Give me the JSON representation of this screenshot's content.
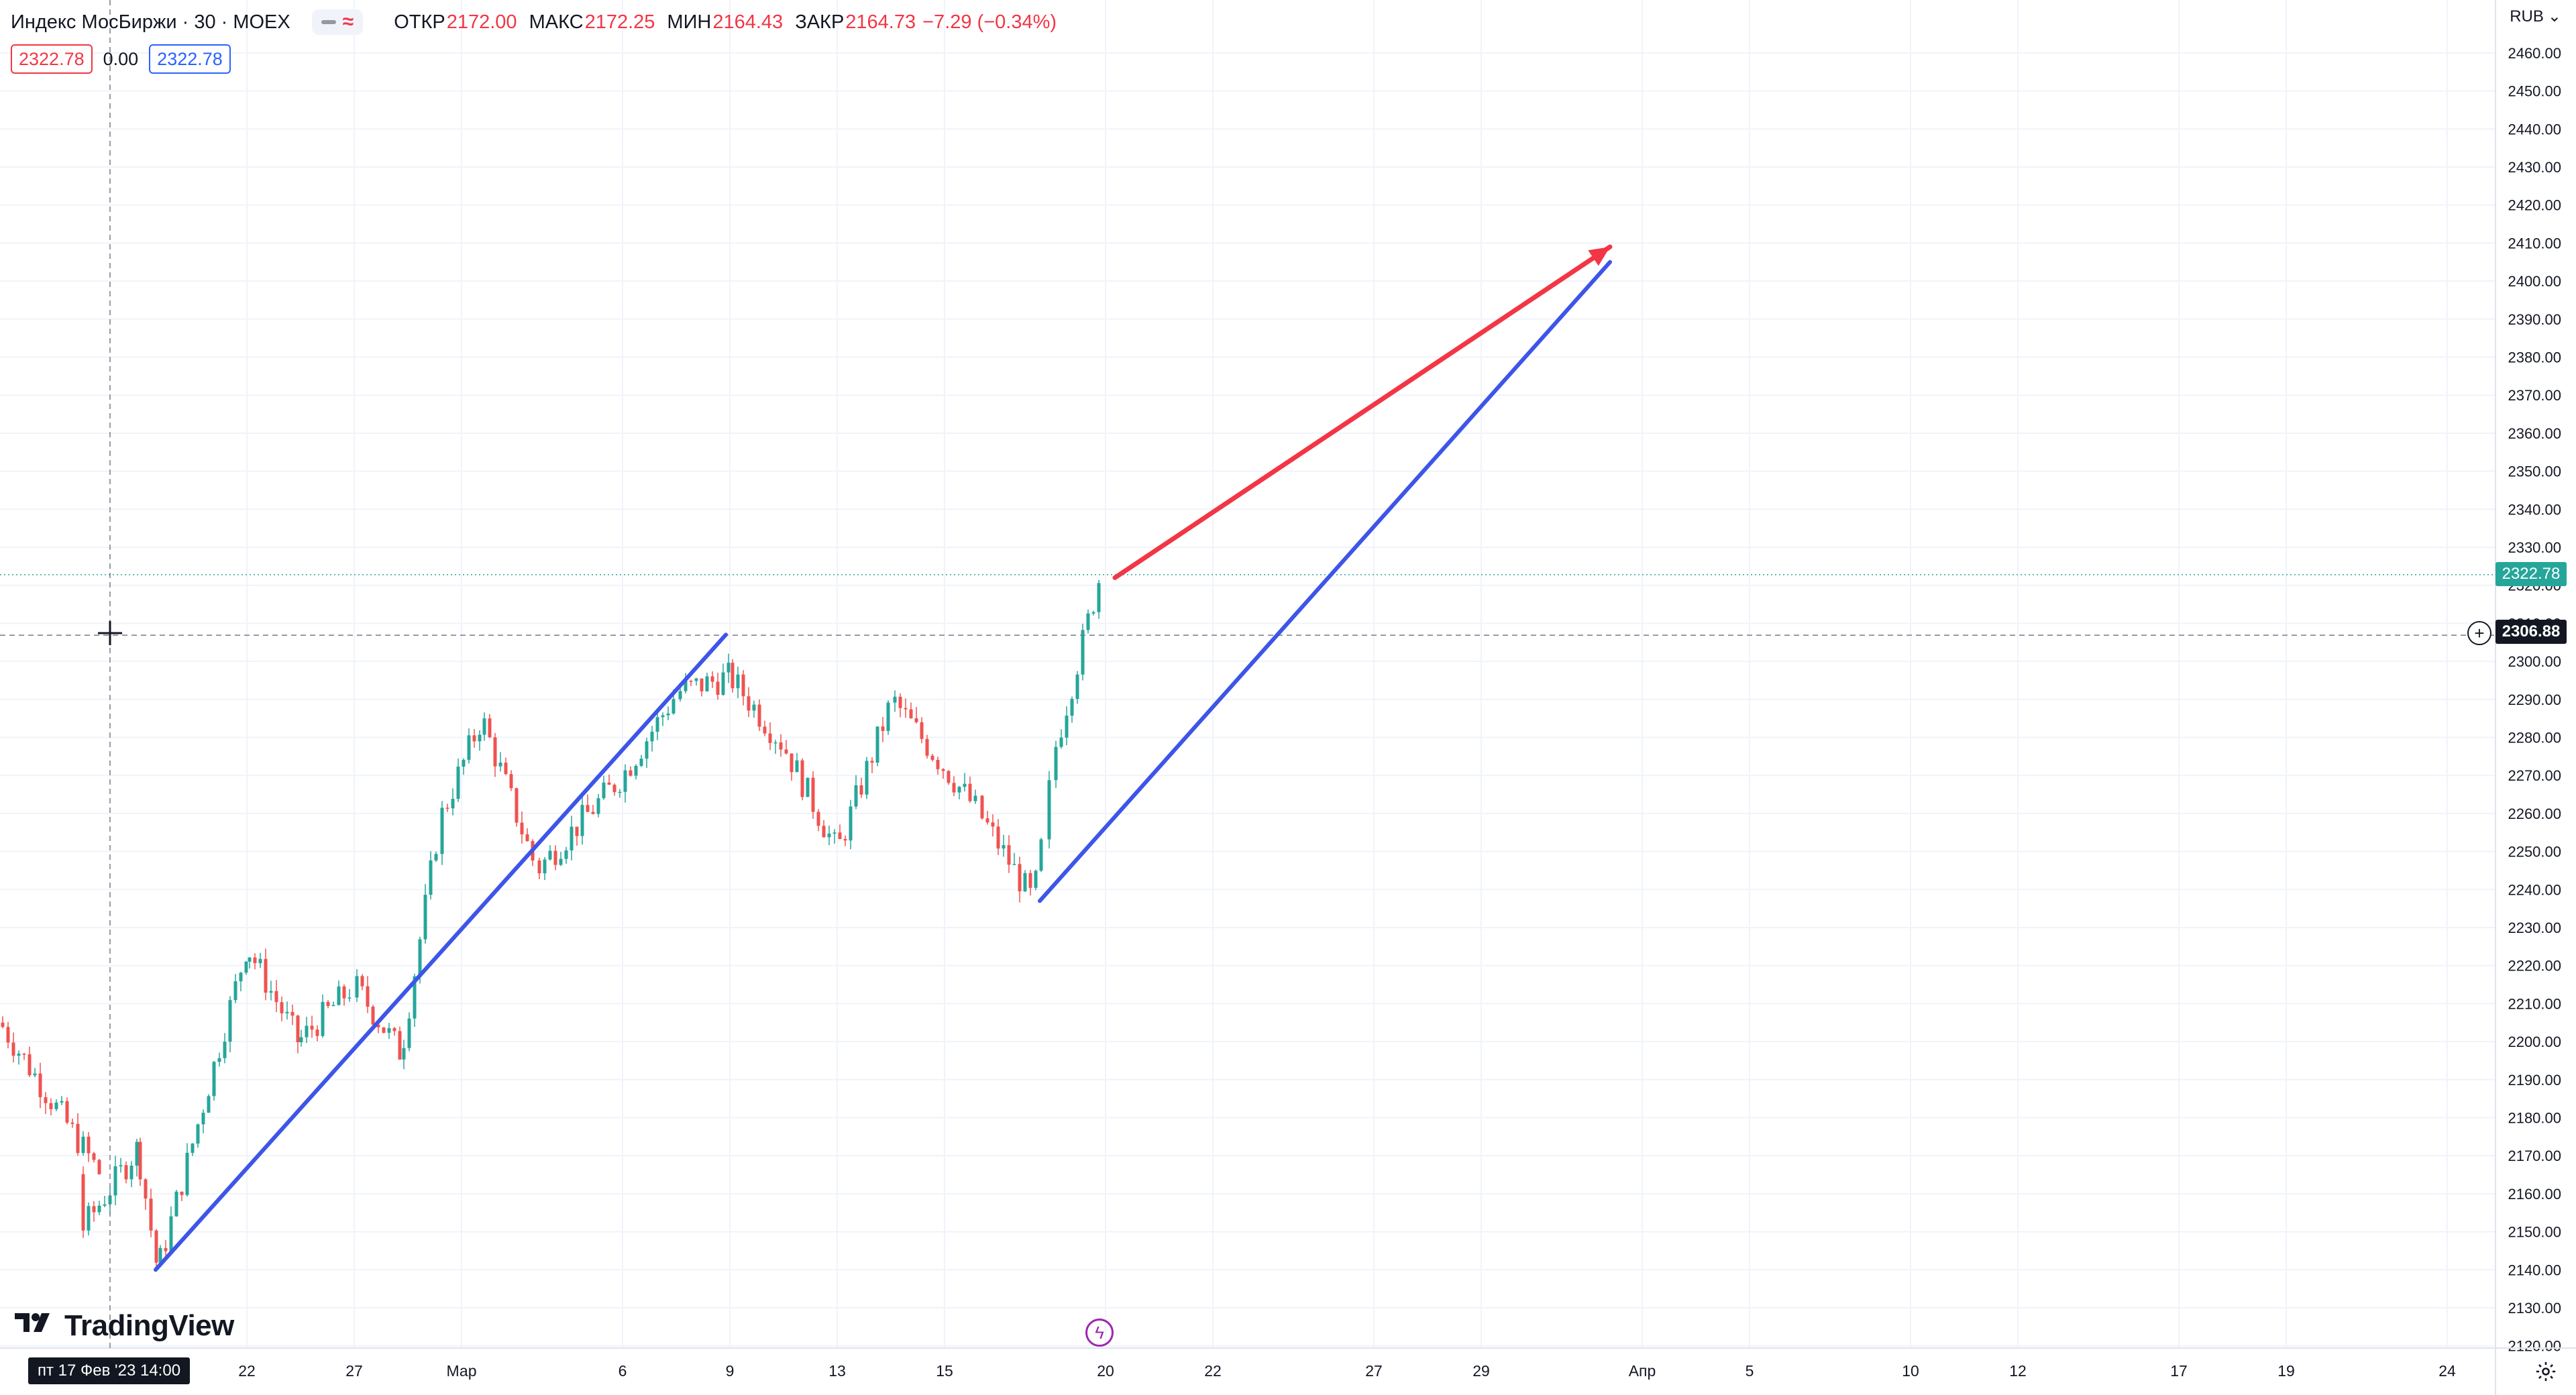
{
  "legend": {
    "symbol_title": "Индекс МосБиржи · 30 · MOEX",
    "ohlc": [
      {
        "label": "ОТКР",
        "value": "2172.00"
      },
      {
        "label": "МАКС",
        "value": "2172.25"
      },
      {
        "label": "МИН",
        "value": "2164.43"
      },
      {
        "label": "ЗАКР",
        "value": "2164.73"
      }
    ],
    "change": "−7.29 (−0.34%)",
    "bid": "2322.78",
    "spread": "0.00",
    "ask": "2322.78"
  },
  "branding": {
    "logo_text": "TradingView"
  },
  "price_scale": {
    "currency": "RUB",
    "last_price_tag": "2322.78",
    "crosshair_price_tag": "2306.88"
  },
  "time_scale": {
    "crosshair_time_tag": "пт 17 Фев '23   14:00"
  },
  "icons": {
    "add": "plus-circle-icon",
    "settings": "gear-icon",
    "events": "lightning-icon",
    "currency_dropdown": "chevron-down-icon"
  },
  "colors": {
    "up_candle": "#26a69a",
    "down_candle": "#ef5350",
    "trend_line_blue": "#3d55e8",
    "arrow_red": "#f23645",
    "last_price": "#26a69a"
  },
  "chart_data": {
    "type": "candlestick",
    "title": "Индекс МосБиржи · 30 · MOEX",
    "ylim": [
      2120,
      2465
    ],
    "y_ticks": [
      "2120.00",
      "2130.00",
      "2140.00",
      "2150.00",
      "2160.00",
      "2170.00",
      "2180.00",
      "2190.00",
      "2200.00",
      "2210.00",
      "2220.00",
      "2230.00",
      "2240.00",
      "2250.00",
      "2260.00",
      "2270.00",
      "2280.00",
      "2290.00",
      "2300.00",
      "2310.00",
      "2320.00",
      "2330.00",
      "2340.00",
      "2350.00",
      "2360.00",
      "2370.00",
      "2380.00",
      "2390.00",
      "2400.00",
      "2410.00",
      "2420.00",
      "2430.00",
      "2440.00",
      "2450.00",
      "2460.00"
    ],
    "x_ticks": [
      "22",
      "27",
      "Мар",
      "6",
      "9",
      "13",
      "15",
      "20",
      "22",
      "27",
      "29",
      "Апр",
      "5",
      "10",
      "12",
      "17",
      "19",
      "24"
    ],
    "price_path": [
      {
        "t": "16 Фев",
        "p": 2205
      },
      {
        "t": "17 Фев",
        "p": 2165
      },
      {
        "t": "17 Фев",
        "p": 2150
      },
      {
        "t": "20 Фев",
        "p": 2172
      },
      {
        "t": "21 Фев",
        "p": 2140
      },
      {
        "t": "22 Фев",
        "p": 2225
      },
      {
        "t": "24 Фев",
        "p": 2200
      },
      {
        "t": "27 Фев",
        "p": 2215
      },
      {
        "t": "28 Фев",
        "p": 2197
      },
      {
        "t": "1 Мар",
        "p": 2258
      },
      {
        "t": "2 Мар",
        "p": 2285
      },
      {
        "t": "3 Мар",
        "p": 2245
      },
      {
        "t": "6 Мар",
        "p": 2270
      },
      {
        "t": "7 Мар",
        "p": 2292
      },
      {
        "t": "9 Мар",
        "p": 2296
      },
      {
        "t": "10 Мар",
        "p": 2278
      },
      {
        "t": "13 Мар",
        "p": 2250
      },
      {
        "t": "14 Мар",
        "p": 2290
      },
      {
        "t": "16 Мар",
        "p": 2260
      },
      {
        "t": "17 Мар",
        "p": 2237
      },
      {
        "t": "17 Мар",
        "p": 2260
      },
      {
        "t": "20 Мар",
        "p": 2275
      },
      {
        "t": "20 Мар",
        "p": 2322.78
      }
    ],
    "last_price": 2322.78,
    "crosshair_price": 2306.88,
    "drawings": [
      {
        "type": "trend_line",
        "color": "#3d55e8",
        "from": {
          "t": "21 Фев",
          "p": 2140
        },
        "to": {
          "t": "9 Мар",
          "p": 2307
        }
      },
      {
        "type": "trend_line",
        "color": "#3d55e8",
        "from": {
          "t": "17 Мар",
          "p": 2237
        },
        "to": {
          "t": "1 Апр",
          "p": 2405
        }
      },
      {
        "type": "arrow",
        "color": "#f23645",
        "from": {
          "t": "20 Мар",
          "p": 2322
        },
        "to": {
          "t": "1 Апр",
          "p": 2409
        }
      }
    ]
  }
}
